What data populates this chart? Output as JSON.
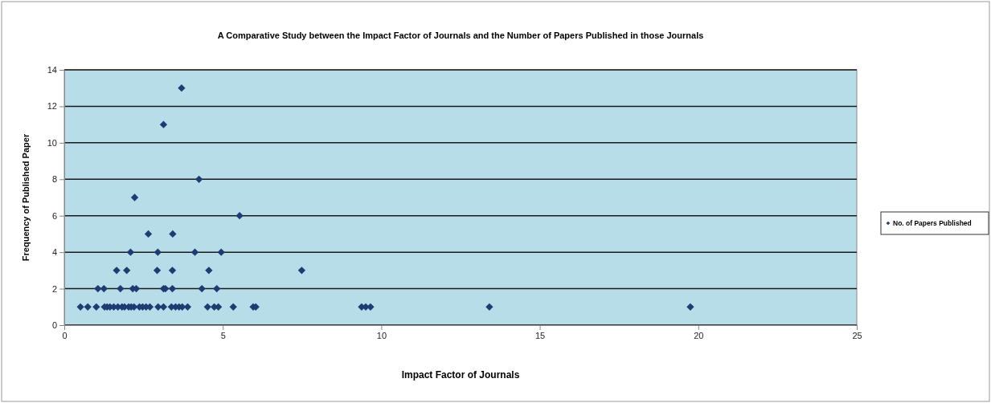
{
  "chart_data": {
    "type": "scatter",
    "title": "A Comparative Study between the Impact Factor of Journals and the Number of Papers Published in those Journals",
    "xlabel": "Impact Factor of Journals",
    "ylabel": "Frequency of Published Paper",
    "xlim": [
      0,
      25
    ],
    "xticks": [
      0,
      5,
      10,
      15,
      20,
      25
    ],
    "ylim": [
      0,
      14
    ],
    "yticks": [
      0,
      2,
      4,
      6,
      8,
      10,
      12,
      14
    ],
    "grid": "y",
    "legend": "right",
    "marker": "diamond",
    "series": [
      {
        "name": "No. of Papers Published",
        "color": "#1f3b73",
        "x": [
          3.7,
          3.13,
          4.25,
          2.22,
          5.53,
          2.65,
          3.42,
          2.09,
          2.95,
          4.12,
          4.95,
          1.65,
          1.97,
          2.93,
          3.41,
          4.56,
          7.49,
          1.06,
          1.25,
          1.77,
          2.16,
          2.27,
          3.13,
          3.19,
          3.41,
          4.34,
          4.81,
          0.51,
          0.74,
          1.01,
          1.27,
          1.35,
          1.44,
          1.56,
          1.69,
          1.82,
          1.9,
          2.03,
          2.11,
          2.2,
          2.37,
          2.47,
          2.58,
          2.7,
          2.96,
          3.13,
          3.38,
          3.51,
          3.62,
          3.72,
          3.89,
          4.52,
          4.73,
          4.86,
          5.33,
          5.96,
          6.04,
          9.38,
          9.51,
          9.66,
          13.41,
          19.75
        ],
        "values": [
          13,
          11,
          8,
          7,
          6,
          5,
          5,
          4,
          4,
          4,
          4,
          3,
          3,
          3,
          3,
          3,
          3,
          2,
          2,
          2,
          2,
          2,
          2,
          2,
          2,
          2,
          2,
          1,
          1,
          1,
          1,
          1,
          1,
          1,
          1,
          1,
          1,
          1,
          1,
          1,
          1,
          1,
          1,
          1,
          1,
          1,
          1,
          1,
          1,
          1,
          1,
          1,
          1,
          1,
          1,
          1,
          1,
          1,
          1,
          1,
          1,
          1
        ]
      }
    ]
  }
}
